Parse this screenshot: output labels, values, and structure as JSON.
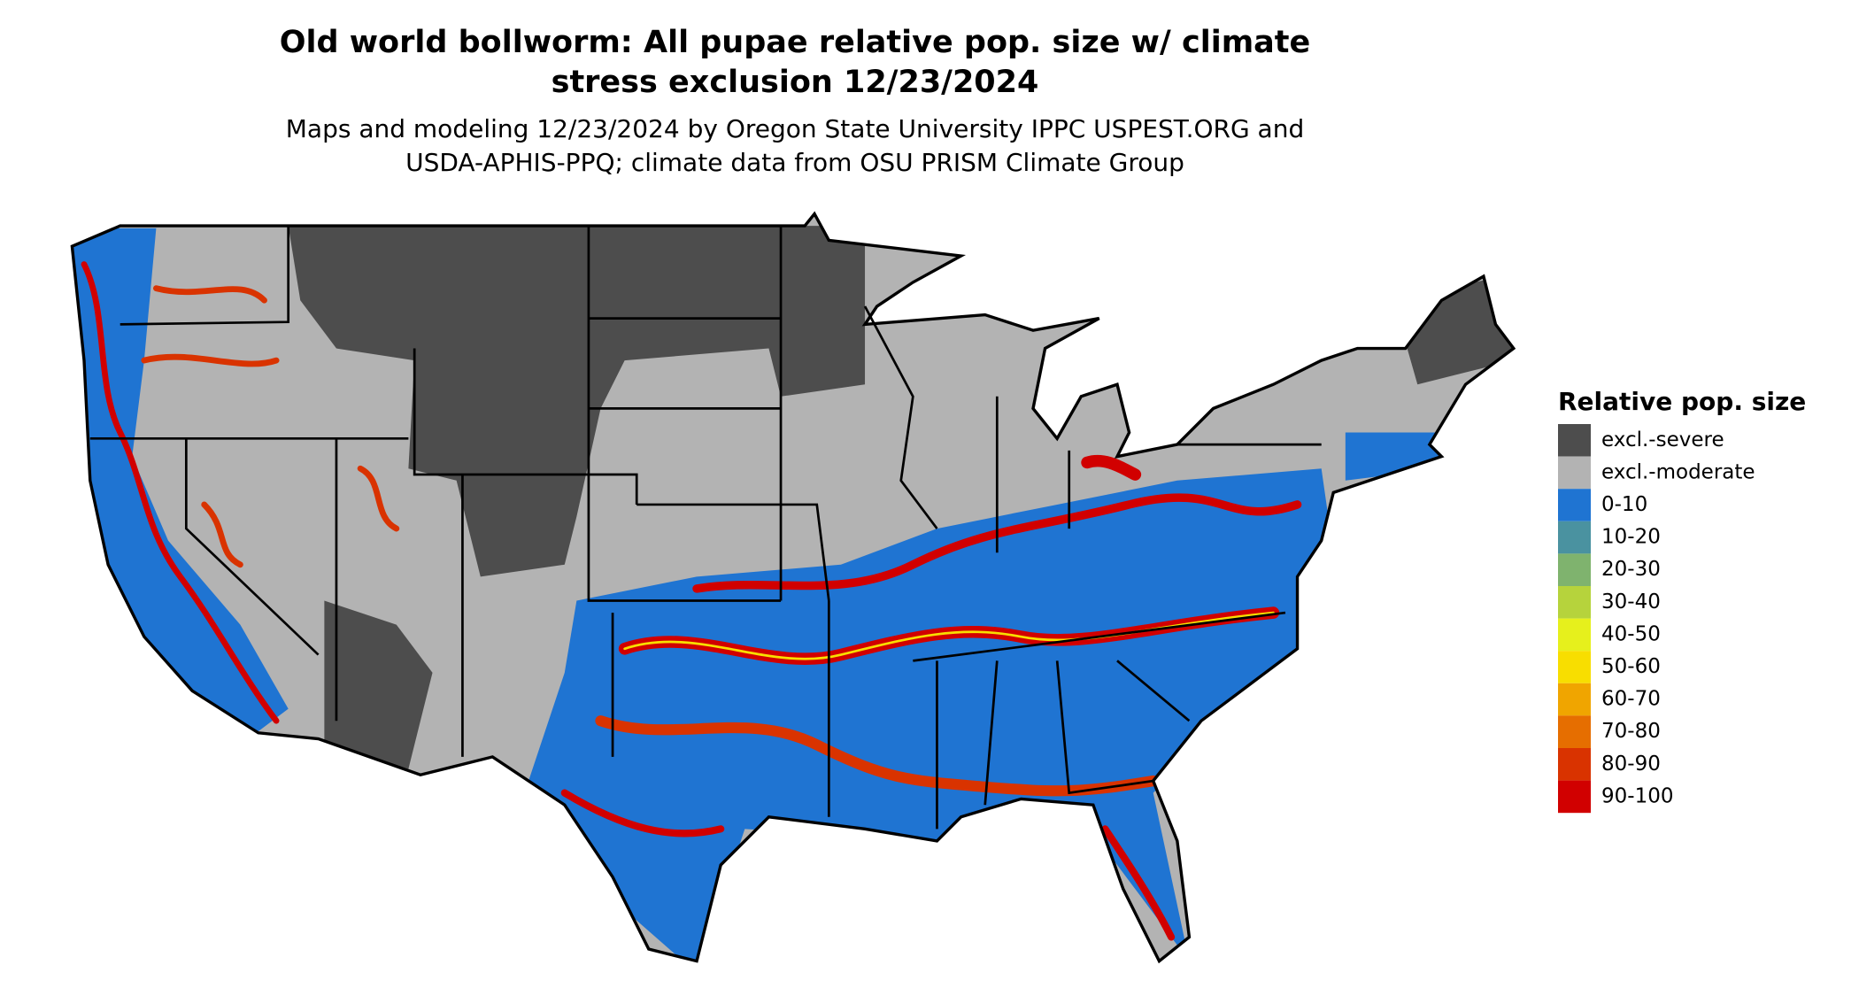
{
  "header": {
    "title": [
      "Old world bollworm: All pupae relative pop. size w/ climate",
      "stress exclusion 12/23/2024"
    ],
    "subtitle": [
      "Maps and modeling 12/23/2024 by Oregon State University IPPC USPEST.ORG and",
      "USDA-APHIS-PPQ; climate data from OSU PRISM Climate Group"
    ]
  },
  "legend": {
    "title": "Relative pop. size",
    "items": [
      {
        "label": "excl.-severe",
        "color": "#4d4d4d"
      },
      {
        "label": "excl.-moderate",
        "color": "#b3b3b3"
      },
      {
        "label": "0-10",
        "color": "#1f74d2"
      },
      {
        "label": "10-20",
        "color": "#4a92a0"
      },
      {
        "label": "20-30",
        "color": "#7fb36e"
      },
      {
        "label": "30-40",
        "color": "#b6d33c"
      },
      {
        "label": "40-50",
        "color": "#e6f01c"
      },
      {
        "label": "50-60",
        "color": "#f8de00"
      },
      {
        "label": "60-70",
        "color": "#f0a500"
      },
      {
        "label": "70-80",
        "color": "#e66e00"
      },
      {
        "label": "80-90",
        "color": "#d93300"
      },
      {
        "label": "90-100",
        "color": "#d10000"
      }
    ]
  }
}
